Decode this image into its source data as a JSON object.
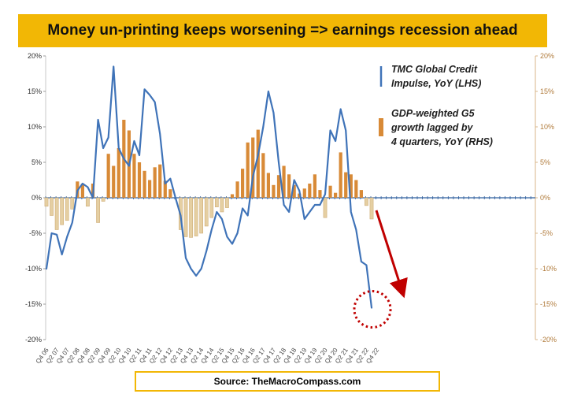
{
  "title": "Money un-printing keeps worsening => earnings recession ahead",
  "source": "Source: TheMacroCompass.com",
  "colors": {
    "banner": "#f2b705",
    "line": "#3f73b8",
    "bar_pos": "#d88a37",
    "bar_neg": "#e5cfa2",
    "zero_line": "#2f5f9e",
    "arrow": "#c00000",
    "circle": "#c00000"
  },
  "chart_data": {
    "type": "line+bar",
    "title": "Money un-printing keeps worsening => earnings recession ahead",
    "left_axis": {
      "ylim": [
        -20,
        20
      ],
      "ticks": [
        "20%",
        "15%",
        "10%",
        "5%",
        "0%",
        "-5%",
        "-10%",
        "-15%",
        "-20%"
      ]
    },
    "right_axis": {
      "ylim": [
        -20,
        20
      ],
      "ticks": [
        "20%",
        "15%",
        "10%",
        "5%",
        "0%",
        "-5%",
        "-10%",
        "-15%",
        "-20%"
      ]
    },
    "x_tick_labels": [
      "Q4 06",
      "Q2 07",
      "Q4 07",
      "Q2 08",
      "Q4 08",
      "Q2 09",
      "Q4 09",
      "Q2 10",
      "Q4 10",
      "Q2 11",
      "Q4 11",
      "Q2 12",
      "Q4 12",
      "Q2 13",
      "Q4 13",
      "Q2 14",
      "Q4 14",
      "Q2 15",
      "Q4 15",
      "Q2 16",
      "Q4 16",
      "Q2 17",
      "Q4 17",
      "Q2 18",
      "Q4 18",
      "Q2 19",
      "Q4 19",
      "Q2 20",
      "Q4 20",
      "Q2 21",
      "Q4 21",
      "Q2 22",
      "Q4 22"
    ],
    "series": [
      {
        "name": "TMC Global Credit Impulse, YoY (LHS)",
        "type": "line",
        "axis": "left",
        "values": [
          -10,
          -5,
          -5.2,
          -8,
          -5.5,
          -3.5,
          1,
          2,
          1.5,
          0,
          11,
          7,
          8.5,
          18.5,
          7,
          5.5,
          4.5,
          8,
          6,
          15.3,
          14.5,
          13.5,
          9,
          2,
          2.7,
          0,
          -2.5,
          -8.5,
          -10,
          -11,
          -10,
          -7.5,
          -4.5,
          -2,
          -3,
          -5.5,
          -6.5,
          -5,
          -1.5,
          -2.5,
          3,
          6,
          10,
          15,
          12,
          5,
          -1,
          -2,
          2.5,
          1,
          -3,
          -2,
          -1,
          -1,
          0.5,
          9.5,
          8,
          12.5,
          9.5,
          -2,
          -4.5,
          -9,
          -9.5,
          -15.5
        ]
      },
      {
        "name": "GDP-weighted G5 growth lagged by 4 quarters, YoY (RHS)",
        "type": "bar",
        "axis": "right",
        "values": [
          -1.2,
          -2.5,
          -4.5,
          -3.8,
          -3.2,
          -1.6,
          2.3,
          2,
          -1.2,
          2,
          -3.5,
          -0.5,
          6.2,
          4.5,
          7,
          11,
          9.5,
          6.2,
          5,
          3.8,
          2.5,
          4.3,
          4.7,
          2.4,
          1.2,
          0,
          -4.5,
          -5.5,
          -5.6,
          -5.4,
          -5,
          -4,
          -2.8,
          -1.3,
          -2,
          -1.4,
          0.5,
          2.3,
          4.1,
          7.8,
          8.5,
          9.6,
          6.3,
          3.5,
          1.8,
          3.2,
          4.5,
          3.3,
          1.8,
          0.6,
          1.3,
          2,
          3.3,
          1.1,
          -2.8,
          1.7,
          0.7,
          6.4,
          3.6,
          3.3,
          2.5,
          1.1,
          -1.1,
          -3
        ]
      }
    ],
    "legend": [
      {
        "label": "TMC Global Credit Impulse, YoY (LHS)",
        "lines": [
          "TMC Global Credit",
          "Impulse, YoY (LHS)"
        ]
      },
      {
        "label": "GDP-weighted G5 growth lagged by 4 quarters, YoY (RHS)",
        "lines": [
          "GDP-weighted G5",
          "growth lagged by",
          "4 quarters, YoY (RHS)"
        ]
      }
    ],
    "legend_position": "top-right",
    "annotations": [
      "red dashed circle around latest credit impulse value",
      "red arrow pointing down"
    ]
  }
}
